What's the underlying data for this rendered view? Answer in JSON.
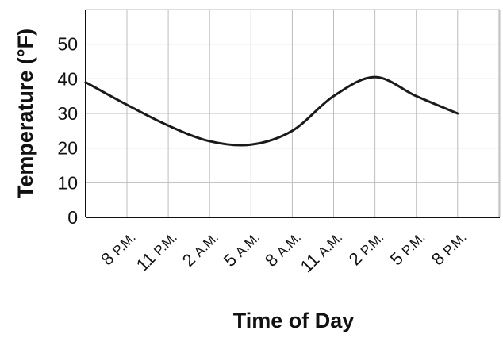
{
  "chart_data": {
    "type": "line",
    "title": "",
    "xlabel": "Time of Day",
    "ylabel": "Temperature (°F)",
    "categories": [
      "8 P.M.",
      "11 P.M.",
      "2 A.M.",
      "5 A.M.",
      "8 A.M.",
      "11 A.M.",
      "2 P.M.",
      "5 P.M.",
      "8 P.M."
    ],
    "y_ticks": [
      0,
      10,
      20,
      30,
      40,
      50
    ],
    "ylim": [
      0,
      60
    ],
    "grid": true,
    "series": [
      {
        "x": [
          -1,
          0,
          1,
          2,
          3,
          4,
          5,
          6,
          7,
          8
        ],
        "values": [
          39,
          32.5,
          26.5,
          22,
          21,
          25,
          35,
          40.5,
          35,
          30
        ],
        "color": "#1a1a1a"
      }
    ]
  }
}
